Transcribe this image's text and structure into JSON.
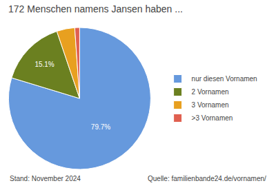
{
  "chart_data": {
    "type": "pie",
    "title": "172 Menschen namens Jansen haben ...",
    "categories": [
      "nur diesen Vornamen",
      "2 Vornamen",
      "3 Vornamen",
      ">3 Vornamen"
    ],
    "values": [
      79.7,
      15.1,
      4.1,
      1.1
    ],
    "value_labels": [
      "79.7%",
      "15.1%",
      null,
      null
    ],
    "data_labels": true,
    "colors": [
      "#6699DD",
      "#6B8020",
      "#E8A020",
      "#E06050"
    ],
    "legend": "right",
    "annotations": [
      "Stand: November 2024",
      "Quelle: familienbande24.de/vornamen/"
    ]
  }
}
